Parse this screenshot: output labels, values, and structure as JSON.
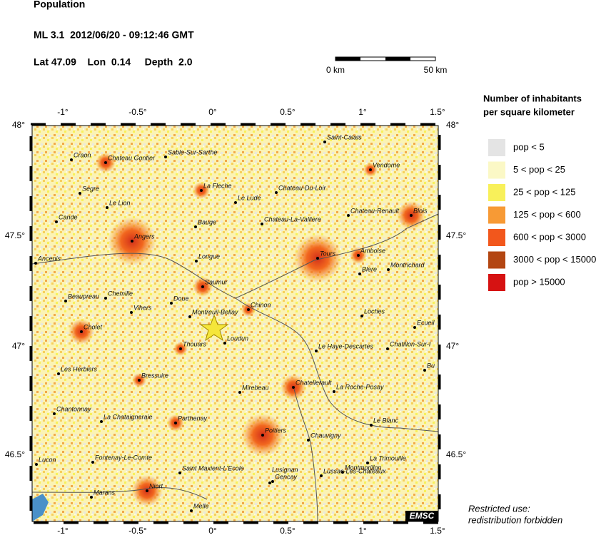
{
  "header": {
    "title": "Population",
    "event": "ML 3.1  2012/06/20 - 09:12:46 GMT",
    "location": "Lat 47.09    Lon  0.14     Depth  2.0"
  },
  "scale_bar": {
    "start": "0 km",
    "end": "50 km"
  },
  "lon_labels": [
    "-1°",
    "-0.5°",
    "0°",
    "0.5°",
    "1°",
    "1.5°"
  ],
  "lat_labels": [
    "48°",
    "47.5°",
    "47°",
    "46.5°"
  ],
  "legend": {
    "title": [
      "Number of inhabitants",
      "per square kilometer"
    ],
    "items": [
      {
        "label": "pop < 5",
        "color": "#e4e4e4"
      },
      {
        "label": "5 < pop < 25",
        "color": "#fbf8c6"
      },
      {
        "label": "25 < pop < 125",
        "color": "#f8f05a"
      },
      {
        "label": "125 < pop < 600",
        "color": "#f79a35"
      },
      {
        "label": "600 < pop < 3000",
        "color": "#f2571c"
      },
      {
        "label": "3000 < pop < 15000",
        "color": "#b34612"
      },
      {
        "label": "pop > 15000",
        "color": "#d61212"
      }
    ]
  },
  "towns": [
    "Craon",
    "Chateau Gontier",
    "Sable-Sur-Sarthe",
    "Saint-Calais",
    "Vendome",
    "Segre",
    "La Fleche",
    "Chateau-Du-Loir",
    "Le Lion",
    "Le Lude",
    "Cande",
    "Bauge",
    "Chateau-La-Valliere",
    "Chateau-Renault",
    "Blois",
    "Angers",
    "Tours",
    "Amboise",
    "Ancenis",
    "Longue",
    "Blere",
    "Montrichard",
    "Saumur",
    "Beaupreau",
    "Chemille",
    "Doue",
    "Vihers",
    "Chinon",
    "Montreuil-Bellay",
    "Loches",
    "Cholet",
    "Ecueil",
    "Thouars",
    "Loudun",
    "Le Haye-Descartes",
    "Chatillon-Sur-I",
    "Les Herbiers",
    "Bressuire",
    "Bu",
    "Mirebeau",
    "Chatellerault",
    "La Roche-Posay",
    "Chantonnay",
    "La Chataigneraie",
    "Parthenay",
    "Le Blanc",
    "Poitiers",
    "Chauvigny",
    "Lucon",
    "Fontenay-Le-Comte",
    "La Trimouille",
    "Montmorillon",
    "Saint Maxient-L'Ecole",
    "Lusignan",
    "Gencay",
    "Lussac-Les-Chateaux",
    "Niort",
    "Marans",
    "Melle"
  ],
  "badge": "EMSC",
  "footer": [
    "Restricted use:",
    "redistribution forbidden"
  ]
}
